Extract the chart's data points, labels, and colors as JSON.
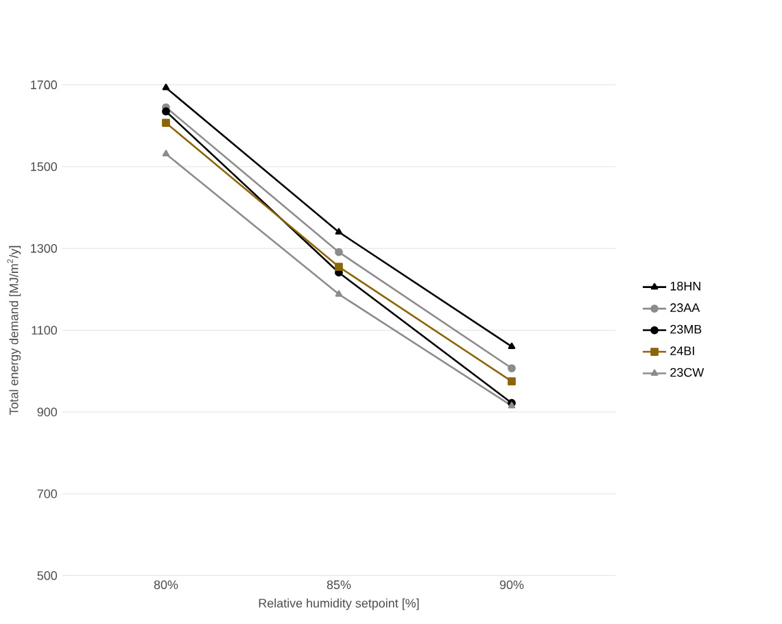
{
  "chart_data": {
    "type": "line",
    "xlabel": "Relative humidity setpoint [%]",
    "ylabel": "Total energy demand [MJ/m$^{2}$/y]",
    "categories": [
      "80%",
      "85%",
      "90%"
    ],
    "ylim": [
      500,
      1700
    ],
    "yticks": [
      500,
      700,
      900,
      1100,
      1300,
      1500,
      1700
    ],
    "grid": "y",
    "legend": "right",
    "series": [
      {
        "name": "18HN",
        "color": "#000000",
        "marker": "triangle",
        "values": [
          1693,
          1340,
          1060
        ]
      },
      {
        "name": "23AA",
        "color": "#8c8c8c",
        "marker": "circle",
        "values": [
          1645,
          1291,
          1007
        ]
      },
      {
        "name": "23MB",
        "color": "#000000",
        "marker": "circle",
        "values": [
          1635,
          1241,
          922
        ]
      },
      {
        "name": "24BI",
        "color": "#8b6508",
        "marker": "square",
        "values": [
          1607,
          1255,
          975
        ]
      },
      {
        "name": "23CW",
        "color": "#8c8c8c",
        "marker": "triangle",
        "values": [
          1531,
          1188,
          915
        ]
      }
    ]
  }
}
